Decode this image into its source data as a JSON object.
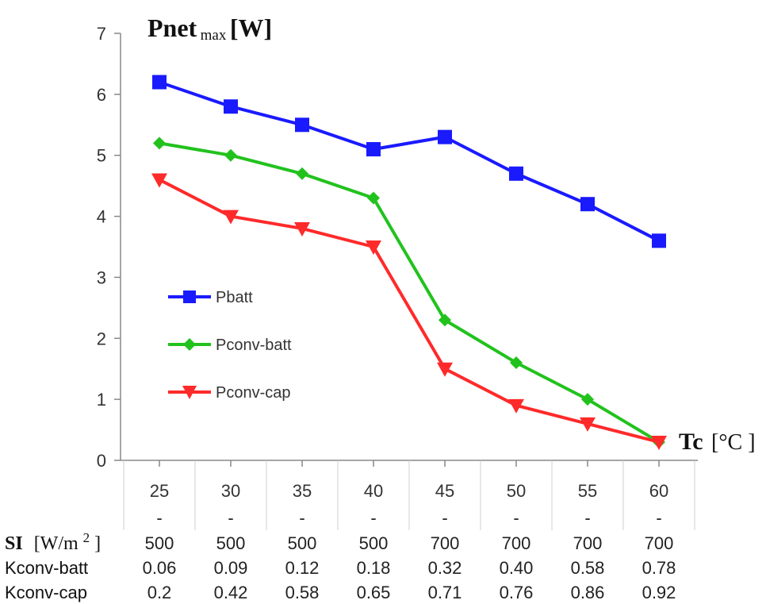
{
  "chart_data": {
    "type": "line",
    "categories": [
      "25",
      "30",
      "35",
      "40",
      "45",
      "50",
      "55",
      "60"
    ],
    "ylim": [
      0,
      7
    ],
    "yticks": [
      0,
      1,
      2,
      3,
      4,
      5,
      6,
      7
    ],
    "ylabel": {
      "main": "Pnet",
      "sub": "max",
      "unit": "[W]"
    },
    "xlabel": {
      "main": "Tc",
      "unit": "[°C ]"
    },
    "legend_position": "left-middle",
    "grid": false,
    "series": [
      {
        "name": "Pbatt",
        "color": "#1a1aff",
        "marker": "square",
        "values": [
          6.2,
          5.8,
          5.5,
          5.1,
          5.3,
          4.7,
          4.2,
          3.6
        ]
      },
      {
        "name": "Pconv-batt",
        "color": "#22c21d",
        "marker": "diamond",
        "values": [
          5.2,
          5.0,
          4.7,
          4.3,
          2.3,
          1.6,
          1.0,
          0.3
        ]
      },
      {
        "name": "Pconv-cap",
        "color": "#ff2a2a",
        "marker": "triangle-down",
        "values": [
          4.6,
          4.0,
          3.8,
          3.5,
          1.5,
          0.9,
          0.6,
          0.3
        ]
      }
    ],
    "dash_row": [
      "-",
      "-",
      "-",
      "-",
      "-",
      "-",
      "-",
      "-"
    ],
    "table_rows": [
      {
        "label": "SI",
        "unit": "[W/m",
        "sup": "2",
        "close": " ]",
        "values": [
          "500",
          "500",
          "500",
          "500",
          "700",
          "700",
          "700",
          "700"
        ]
      },
      {
        "label": "Kconv-batt",
        "values": [
          "0.06",
          "0.09",
          "0.12",
          "0.18",
          "0.32",
          "0.40",
          "0.58",
          "0.78"
        ]
      },
      {
        "label": "Kconv-cap",
        "values": [
          "0.2",
          "0.42",
          "0.58",
          "0.65",
          "0.71",
          "0.76",
          "0.86",
          "0.92"
        ]
      }
    ]
  }
}
